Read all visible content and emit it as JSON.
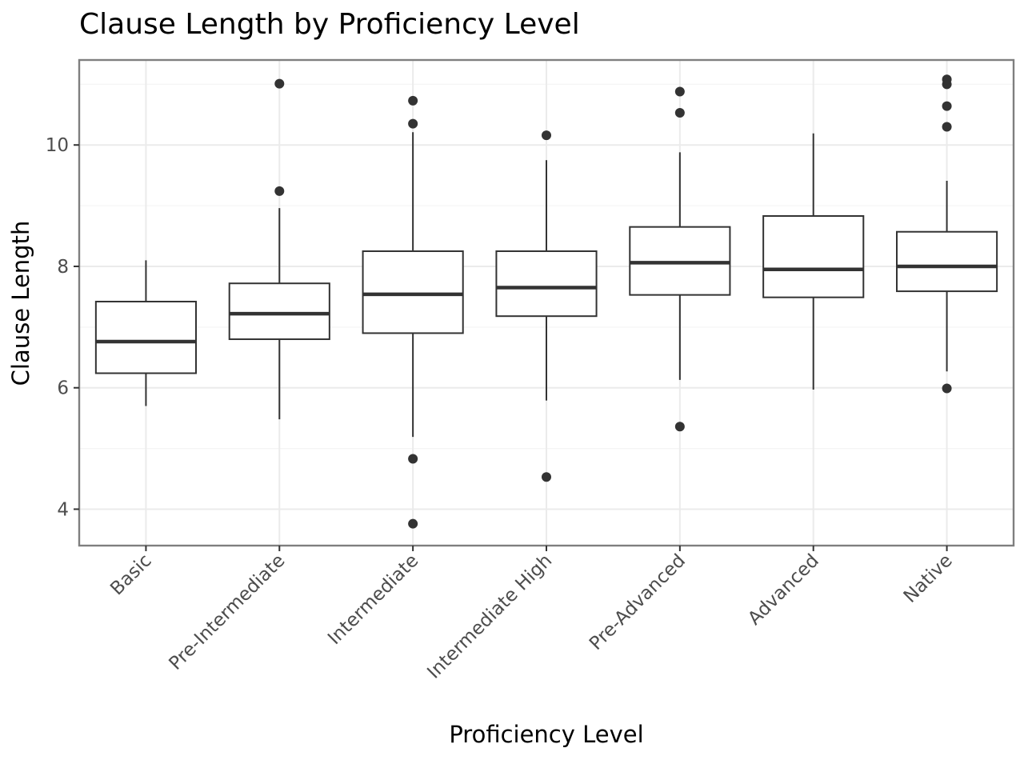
{
  "chart_data": {
    "type": "box",
    "title": "Clause Length by Proficiency Level",
    "xlabel": "Proficiency Level",
    "ylabel": "Clause Length",
    "ylim": [
      3.4,
      11.4
    ],
    "yticks": [
      4,
      6,
      8,
      10
    ],
    "grid": true,
    "categories": [
      "Basic",
      "Pre-Intermediate",
      "Intermediate",
      "Intermediate High",
      "Pre-Advanced",
      "Advanced",
      "Native"
    ],
    "boxes": [
      {
        "whisker_low": 5.7,
        "q1": 6.24,
        "median": 6.76,
        "q3": 7.42,
        "whisker_high": 8.1,
        "outliers": []
      },
      {
        "whisker_low": 5.48,
        "q1": 6.8,
        "median": 7.22,
        "q3": 7.72,
        "whisker_high": 8.96,
        "outliers": [
          9.24,
          11.01
        ]
      },
      {
        "whisker_low": 5.19,
        "q1": 6.9,
        "median": 7.54,
        "q3": 8.25,
        "whisker_high": 10.21,
        "outliers": [
          3.76,
          4.83,
          10.35,
          10.73
        ]
      },
      {
        "whisker_low": 5.79,
        "q1": 7.18,
        "median": 7.65,
        "q3": 8.25,
        "whisker_high": 9.75,
        "outliers": [
          4.53,
          10.16
        ]
      },
      {
        "whisker_low": 6.13,
        "q1": 7.53,
        "median": 8.06,
        "q3": 8.65,
        "whisker_high": 9.88,
        "outliers": [
          5.36,
          10.53,
          10.88
        ]
      },
      {
        "whisker_low": 5.97,
        "q1": 7.49,
        "median": 7.95,
        "q3": 8.83,
        "whisker_high": 10.19,
        "outliers": []
      },
      {
        "whisker_low": 6.27,
        "q1": 7.59,
        "median": 8.0,
        "q3": 8.57,
        "whisker_high": 9.41,
        "outliers": [
          5.99,
          10.3,
          10.64,
          11.0,
          11.08
        ]
      }
    ]
  }
}
